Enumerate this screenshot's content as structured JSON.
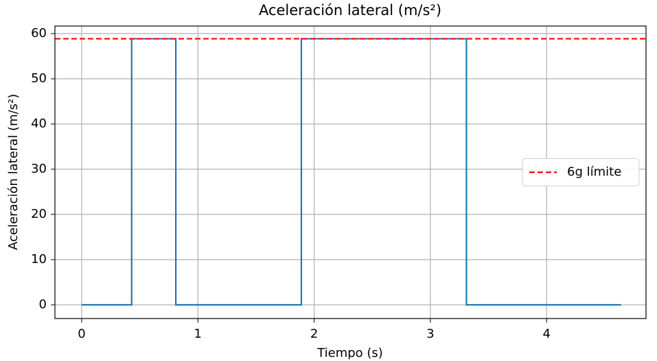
{
  "chart_data": {
    "type": "line",
    "title": "Aceleración lateral (m/s²)",
    "xlabel": "Tiempo (s)",
    "ylabel": "Aceleración lateral (m/s²)",
    "series": [
      {
        "name": null,
        "color": "#1f77b4",
        "x": [
          0,
          0.43,
          0.43,
          0.81,
          0.81,
          1.89,
          1.89,
          3.31,
          3.31,
          4.64
        ],
        "values": [
          0,
          0,
          58.86,
          58.86,
          0,
          0,
          58.86,
          58.86,
          0,
          0
        ]
      }
    ],
    "hline": {
      "value": 58.86,
      "color": "#ff0000",
      "name": "6g límite"
    },
    "xlim": [
      -0.23,
      4.855
    ],
    "ylim": [
      -3.03,
      61.67
    ],
    "xticks": [
      0,
      1,
      2,
      3,
      4
    ],
    "yticks": [
      0,
      10,
      20,
      30,
      40,
      50,
      60
    ],
    "grid": true,
    "legend": "center right"
  }
}
